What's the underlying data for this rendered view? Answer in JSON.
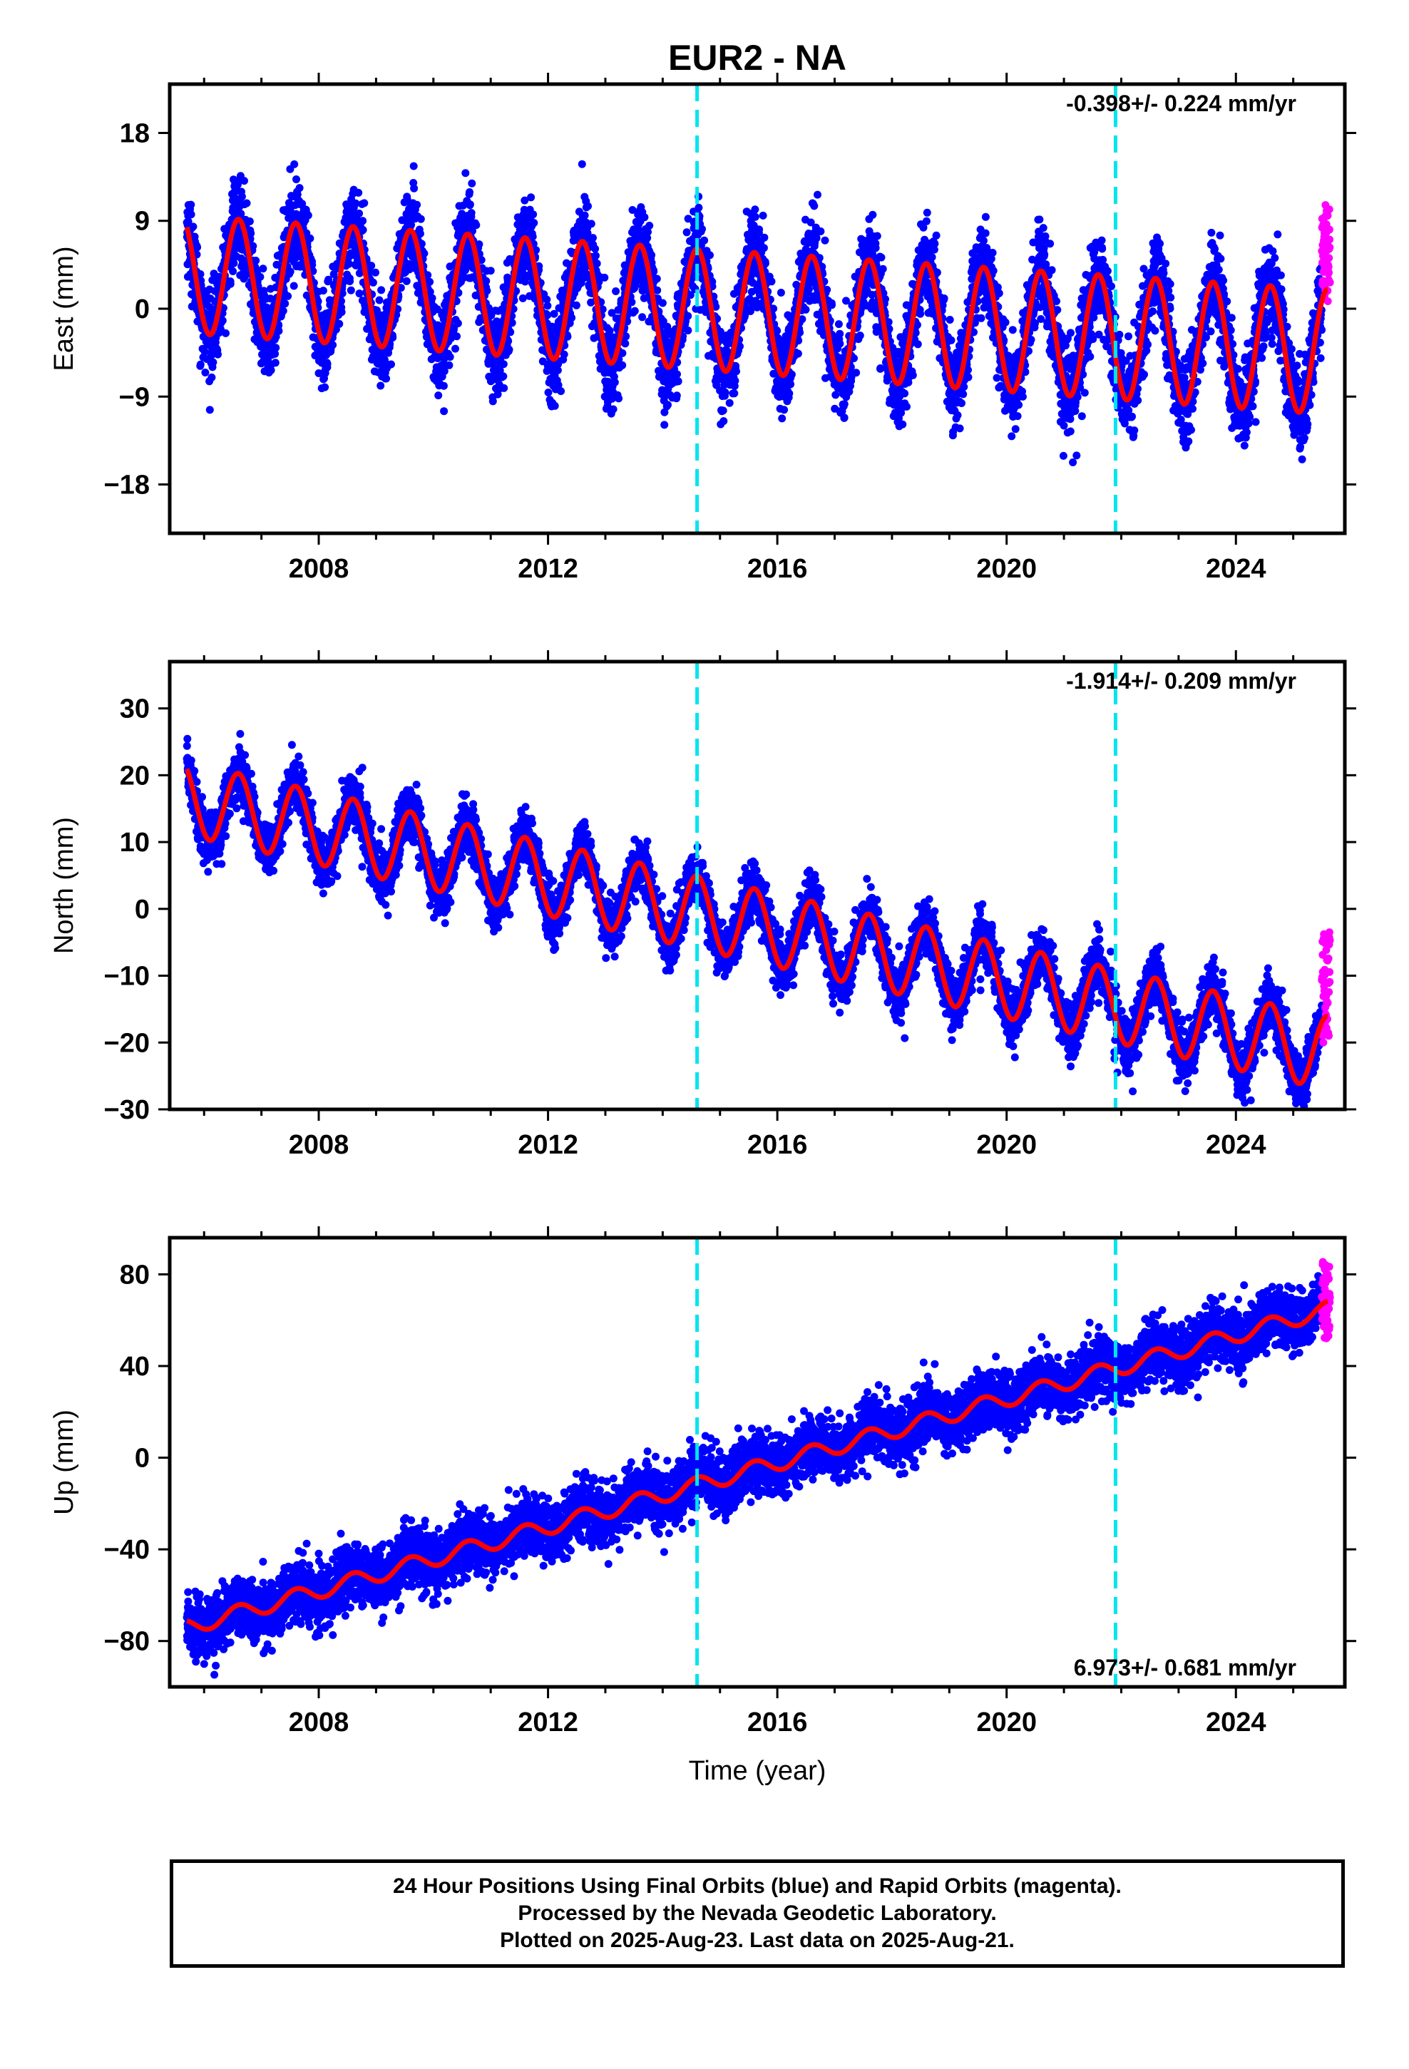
{
  "title": "EUR2 - NA",
  "caption": {
    "lines": [
      "24 Hour Positions Using Final Orbits (blue) and Rapid Orbits (magenta).",
      "Processed by the Nevada Geodetic Laboratory.",
      "Plotted on 2025-Aug-23. Last data on 2025-Aug-21."
    ]
  },
  "colors": {
    "final_orbits": "#0000ff",
    "rapid_orbits": "#ff00ff",
    "model_fit": "#ff0000",
    "event_lines": "#00e5ee"
  },
  "chart_data": [
    {
      "type": "scatter",
      "component": "East",
      "ylabel": "East (mm)",
      "xlabel": "",
      "xlim": [
        2005.4,
        2025.9
      ],
      "ylim": [
        -23,
        23
      ],
      "xticks": [
        2008,
        2012,
        2016,
        2020,
        2024
      ],
      "yticks": [
        -18,
        -9,
        0,
        9,
        18
      ],
      "rate_text": "-0.398+/- 0.224 mm/yr",
      "rate_position": "top-right",
      "event_lines_x": [
        2014.6,
        2021.9
      ],
      "series": [
        {
          "name": "Final Orbits",
          "color": "#0000ff",
          "start": 2005.7,
          "end": 2025.5,
          "offset": 3.5,
          "trend": -0.398,
          "amplitude": 6.0,
          "amplitude_end": 6.4,
          "noise": 2.2,
          "peak_phase": 0.6
        },
        {
          "name": "Rapid Orbits",
          "color": "#ff00ff",
          "start": 2025.5,
          "end": 2025.64,
          "values_range": [
            0,
            11
          ]
        },
        {
          "name": "Model",
          "color": "#ff0000",
          "start": 2005.7,
          "end": 2025.6
        }
      ]
    },
    {
      "type": "scatter",
      "component": "North",
      "ylabel": "North (mm)",
      "xlabel": "",
      "xlim": [
        2005.4,
        2025.9
      ],
      "ylim": [
        -30,
        37
      ],
      "xticks": [
        2008,
        2012,
        2016,
        2020,
        2024
      ],
      "yticks": [
        -30,
        -20,
        -10,
        0,
        10,
        20,
        30
      ],
      "rate_text": "-1.914+/- 0.209 mm/yr",
      "rate_position": "top-right",
      "event_lines_x": [
        2014.6,
        2021.9
      ],
      "series": [
        {
          "name": "Final Orbits",
          "color": "#0000ff",
          "start": 2005.7,
          "end": 2025.5,
          "offset": 16.5,
          "trend": -1.914,
          "amplitude": 5.5,
          "noise": 2.0,
          "peak_phase": 0.6
        },
        {
          "name": "Rapid Orbits",
          "color": "#ff00ff",
          "start": 2025.5,
          "end": 2025.64,
          "values_range": [
            -20,
            -3
          ]
        },
        {
          "name": "Model",
          "color": "#ff0000",
          "start": 2005.7,
          "end": 2025.6
        }
      ]
    },
    {
      "type": "scatter",
      "component": "Up",
      "ylabel": "Up (mm)",
      "xlabel": "Time (year)",
      "xlim": [
        2005.4,
        2025.9
      ],
      "ylim": [
        -100,
        96
      ],
      "xticks": [
        2008,
        2012,
        2016,
        2020,
        2024
      ],
      "yticks": [
        -80,
        -40,
        0,
        40,
        80
      ],
      "rate_text": "6.973+/- 0.681 mm/yr",
      "rate_position": "bottom-right",
      "event_lines_x": [
        2014.6,
        2021.9
      ],
      "series": [
        {
          "name": "Final Orbits",
          "color": "#0000ff",
          "start": 2005.7,
          "end": 2025.5,
          "offset": -74,
          "trend": 6.973,
          "amplitude": 3.5,
          "noise": 6.5,
          "peak_phase": 0.6
        },
        {
          "name": "Rapid Orbits",
          "color": "#ff00ff",
          "start": 2025.5,
          "end": 2025.64,
          "values_range": [
            50,
            86
          ]
        },
        {
          "name": "Model",
          "color": "#ff0000",
          "start": 2005.7,
          "end": 2025.6
        }
      ]
    }
  ]
}
